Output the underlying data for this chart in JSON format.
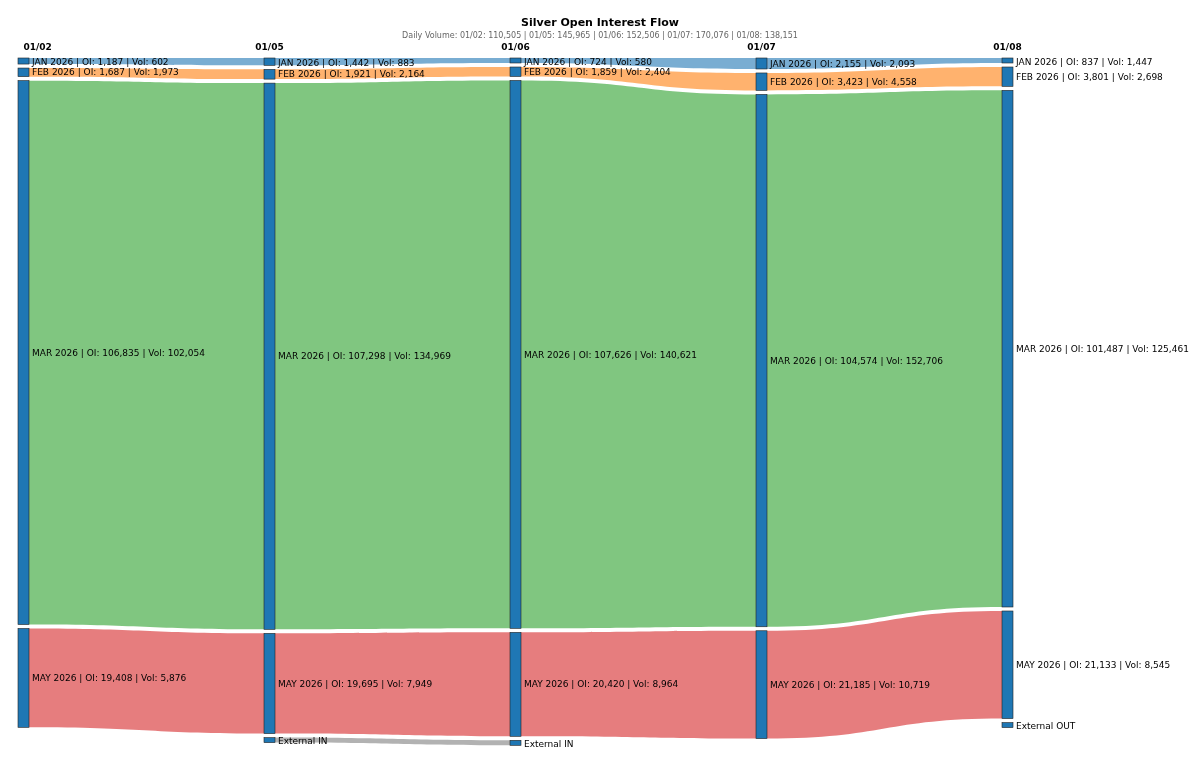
{
  "chart_data": {
    "type": "other",
    "title": "Silver Open Interest Flow",
    "subtitle": "Daily Volume: 01/02: 110,505 | 01/05: 145,965 | 01/06: 152,506 | 01/07: 170,076 | 01/08: 138,151",
    "categories": [
      "01/02",
      "01/05",
      "01/06",
      "01/07",
      "01/08"
    ],
    "series": [
      {
        "color": "#1f77b4",
        "values": [
          1187,
          1442,
          724,
          2155,
          837
        ],
        "value_labels": [
          "JAN 2026 | OI: 1,187 | Vol: 602",
          "JAN 2026 | OI: 1,442 | Vol: 883",
          "JAN 2026 | OI: 724 | Vol: 580",
          "JAN 2026 | OI: 2,155 | Vol: 2,093",
          "JAN 2026 | OI: 837 | Vol: 1,447"
        ]
      },
      {
        "color": "#ff7f0e",
        "values": [
          1687,
          1921,
          1859,
          3423,
          3801
        ],
        "value_labels": [
          "FEB 2026 | OI: 1,687 | Vol: 1,973",
          "FEB 2026 | OI: 1,921 | Vol: 2,164",
          "FEB 2026 | OI: 1,859 | Vol: 2,404",
          "FEB 2026 | OI: 3,423 | Vol: 4,558",
          "FEB 2026 | OI: 3,801 | Vol: 2,698"
        ]
      },
      {
        "color": "#2ca02c",
        "values": [
          106835,
          107298,
          107626,
          104574,
          101487
        ],
        "value_labels": [
          "MAR 2026 | OI: 106,835 | Vol: 102,054",
          "MAR 2026 | OI: 107,298 | Vol: 134,969",
          "MAR 2026 | OI: 107,626 | Vol: 140,621",
          "MAR 2026 | OI: 104,574 | Vol: 152,706",
          "MAR 2026 | OI: 101,487 | Vol: 125,461"
        ]
      },
      {
        "color": "#d62728",
        "values": [
          19408,
          19695,
          20420,
          21185,
          21133
        ],
        "value_labels": [
          "MAY 2026 | OI: 19,408 | Vol: 5,876",
          "MAY 2026 | OI: 19,695 | Vol: 7,949",
          "MAY 2026 | OI: 20,420 | Vol: 8,964",
          "MAY 2026 | OI: 21,185 | Vol: 10,719",
          "MAY 2026 | OI: 21,133 | Vol: 8,545"
        ]
      },
      {
        "color": "#7f7f7f",
        "values": [
          null,
          null,
          null,
          null,
          null
        ],
        "value_labels": [
          null,
          "External IN",
          "External IN",
          null,
          "External OUT"
        ]
      }
    ]
  }
}
